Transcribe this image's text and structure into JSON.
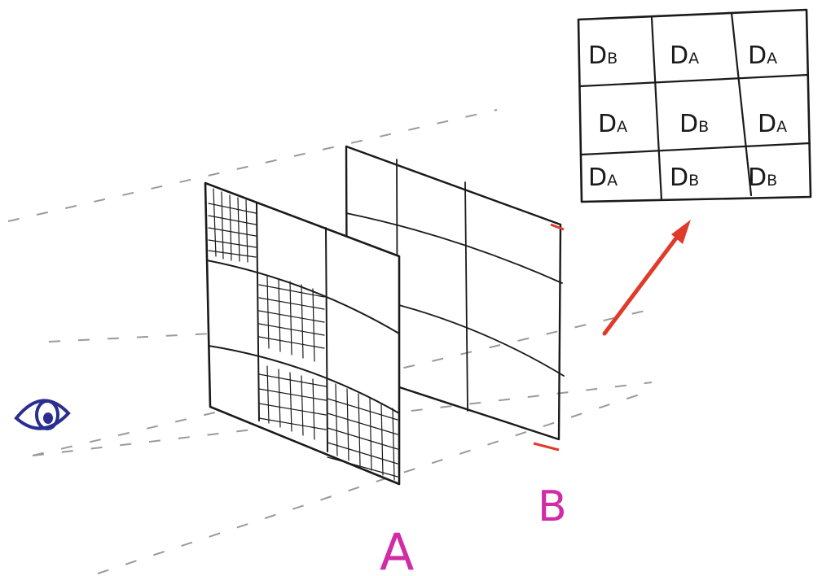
{
  "labels": {
    "screen_a": "A",
    "screen_b": "B"
  },
  "result_grid": {
    "rows": [
      [
        {
          "main": "D",
          "sub": "B"
        },
        {
          "main": "D",
          "sub": "A"
        },
        {
          "main": "D",
          "sub": "A"
        }
      ],
      [
        {
          "main": "D",
          "sub": "A"
        },
        {
          "main": "D",
          "sub": "B"
        },
        {
          "main": "D",
          "sub": "A"
        }
      ],
      [
        {
          "main": "D",
          "sub": "A"
        },
        {
          "main": "D",
          "sub": "B"
        },
        {
          "main": "D",
          "sub": "B"
        }
      ]
    ]
  },
  "screen_a_pattern": {
    "rows": 3,
    "cols": 3,
    "filled_cells": [
      [
        0,
        0
      ],
      [
        1,
        1
      ],
      [
        2,
        1
      ],
      [
        2,
        2
      ]
    ]
  },
  "colors": {
    "ink": "#1a1a1a",
    "label": "#d12ca6",
    "arrow": "#e03a2a",
    "eye": "#2a2f8f",
    "guide": "#9a9a9a"
  },
  "icons": {
    "viewer": "eye-icon"
  }
}
